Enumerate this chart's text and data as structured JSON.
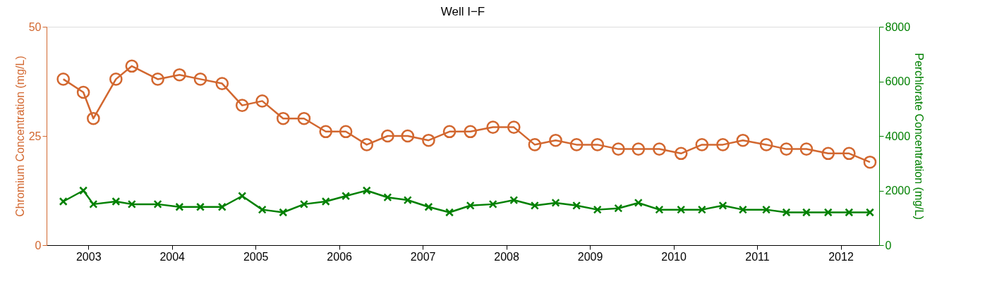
{
  "chart_data": {
    "type": "line",
    "title": "Well I−F",
    "ylabel": "Chromium Concentration (mg/L)",
    "y2label": "Perchlorate Concentration (mg/L)",
    "x": [
      2002.7,
      2002.94,
      2003.06,
      2003.33,
      2003.52,
      2003.83,
      2004.09,
      2004.34,
      2004.6,
      2004.84,
      2005.08,
      2005.33,
      2005.58,
      2005.84,
      2006.08,
      2006.33,
      2006.58,
      2006.82,
      2007.07,
      2007.32,
      2007.57,
      2007.84,
      2008.09,
      2008.34,
      2008.59,
      2008.84,
      2009.09,
      2009.34,
      2009.58,
      2009.83,
      2010.09,
      2010.34,
      2010.59,
      2010.83,
      2011.11,
      2011.35,
      2011.59,
      2011.85,
      2012.1,
      2012.35
    ],
    "series": [
      {
        "color": "#d2672f",
        "marker": "circle",
        "values": [
          38,
          35,
          29,
          38,
          41,
          38,
          39,
          38,
          37,
          32,
          33,
          29,
          29,
          26,
          26,
          23,
          25,
          25,
          24,
          26,
          26,
          27,
          27,
          23,
          24,
          23,
          23,
          22,
          22,
          22,
          21,
          23,
          23,
          24,
          23,
          22,
          22,
          21,
          21,
          19
        ]
      },
      {
        "color": "#008000",
        "marker": "cross",
        "axis": "y2",
        "values": [
          1600,
          2000,
          1500,
          1600,
          1500,
          1500,
          1400,
          1400,
          1400,
          1800,
          1300,
          1200,
          1500,
          1600,
          1800,
          2000,
          1750,
          1650,
          1400,
          1200,
          1450,
          1500,
          1650,
          1450,
          1550,
          1450,
          1300,
          1350,
          1550,
          1300,
          1300,
          1300,
          1450,
          1300,
          1300,
          1200,
          1200,
          1200,
          1200,
          1200
        ]
      }
    ],
    "xlim": [
      2002.5,
      2012.46
    ],
    "xticks": [
      2003,
      2004,
      2005,
      2006,
      2007,
      2008,
      2009,
      2010,
      2011,
      2012
    ],
    "ylim": [
      0,
      50
    ],
    "yticks": [
      0,
      25,
      50
    ],
    "y2lim": [
      0,
      8000
    ],
    "y2ticks": [
      0,
      2000,
      4000,
      6000,
      8000
    ],
    "grid": false,
    "line_style": "solid"
  }
}
